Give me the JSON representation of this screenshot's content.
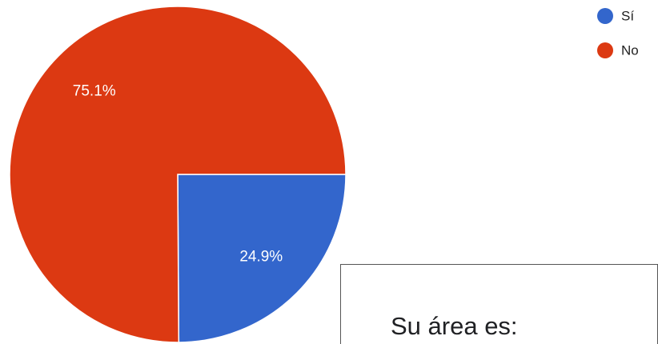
{
  "chart_data": {
    "type": "pie",
    "categories": [
      "Sí",
      "No"
    ],
    "values": [
      24.9,
      75.1
    ],
    "value_labels": [
      "24.9%",
      "75.1%"
    ],
    "colors": [
      "#3366cc",
      "#dc3912"
    ],
    "legend": "top-right"
  },
  "card": {
    "title": "Su área es:"
  }
}
